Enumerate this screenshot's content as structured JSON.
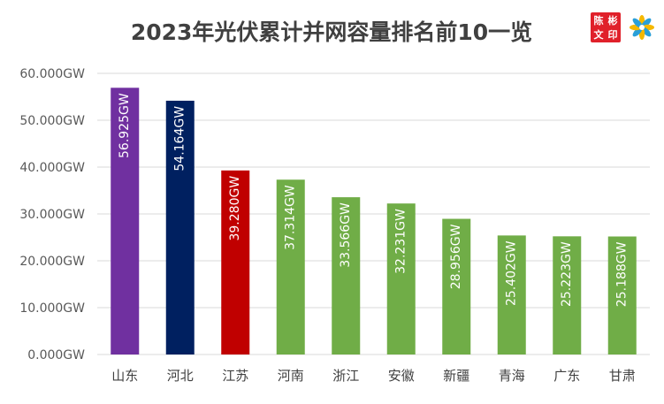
{
  "chart_data": {
    "type": "bar",
    "title": "2023年光伏累计并网容量排名前10一览",
    "xlabel": "",
    "ylabel": "",
    "categories": [
      "山东",
      "河北",
      "江苏",
      "河南",
      "浙江",
      "安徽",
      "新疆",
      "青海",
      "广东",
      "甘肃"
    ],
    "values": [
      56.925,
      54.164,
      39.28,
      37.314,
      33.566,
      32.231,
      28.956,
      25.402,
      25.223,
      25.188
    ],
    "data_labels": [
      "56.925GW",
      "54.164GW",
      "39.280GW",
      "37.314GW",
      "33.566GW",
      "32.231GW",
      "28.956GW",
      "25.402GW",
      "25.223GW",
      "25.188GW"
    ],
    "bar_colors": [
      "#7030a0",
      "#002060",
      "#c00000",
      "#70ad47",
      "#70ad47",
      "#70ad47",
      "#70ad47",
      "#70ad47",
      "#70ad47",
      "#70ad47"
    ],
    "ylim": [
      0,
      60
    ],
    "yticks": [
      0,
      10,
      20,
      30,
      40,
      50,
      60
    ],
    "ytick_labels": [
      "0.000GW",
      "10.000GW",
      "20.000GW",
      "30.000GW",
      "40.000GW",
      "50.000GW",
      "60.000GW"
    ],
    "grid": true,
    "legend": "none"
  },
  "logo": {
    "seal_text": "彬陈印文",
    "seal_color": "#e0202a",
    "flower_colors": [
      "#f5b800",
      "#2a9fd8"
    ]
  }
}
